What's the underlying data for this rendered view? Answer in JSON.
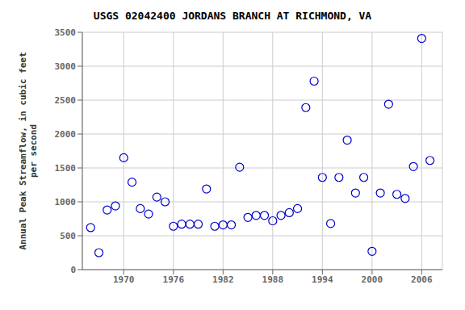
{
  "chart_data": {
    "type": "scatter",
    "title": "USGS 02042400 JORDANS BRANCH AT RICHMOND, VA",
    "ylabel": "Annual Peak Streamflow, in cubic feet\nper second",
    "x": [
      1966,
      1967,
      1968,
      1969,
      1970,
      1971,
      1972,
      1973,
      1974,
      1975,
      1976,
      1977,
      1978,
      1979,
      1980,
      1981,
      1982,
      1983,
      1984,
      1985,
      1986,
      1987,
      1988,
      1989,
      1990,
      1991,
      1992,
      1993,
      1994,
      1995,
      1996,
      1997,
      1998,
      1999,
      2000,
      2001,
      2002,
      2003,
      2004,
      2005,
      2006,
      2007
    ],
    "values": [
      620,
      250,
      880,
      940,
      1650,
      1290,
      900,
      820,
      1070,
      1000,
      640,
      670,
      670,
      670,
      1190,
      640,
      660,
      660,
      1510,
      770,
      800,
      800,
      720,
      800,
      840,
      900,
      2390,
      2780,
      1360,
      680,
      1360,
      1910,
      1130,
      1360,
      270,
      1130,
      2440,
      1110,
      1050,
      1520,
      3410,
      1610
    ],
    "color": "#0000cc",
    "xlim": [
      1965,
      2008.5
    ],
    "ylim": [
      0,
      3500
    ],
    "xticks": [
      1970,
      1976,
      1982,
      1988,
      1994,
      2000,
      2006
    ],
    "yticks": [
      0,
      500,
      1000,
      1500,
      2000,
      2500,
      3000,
      3500
    ],
    "grid": true
  }
}
